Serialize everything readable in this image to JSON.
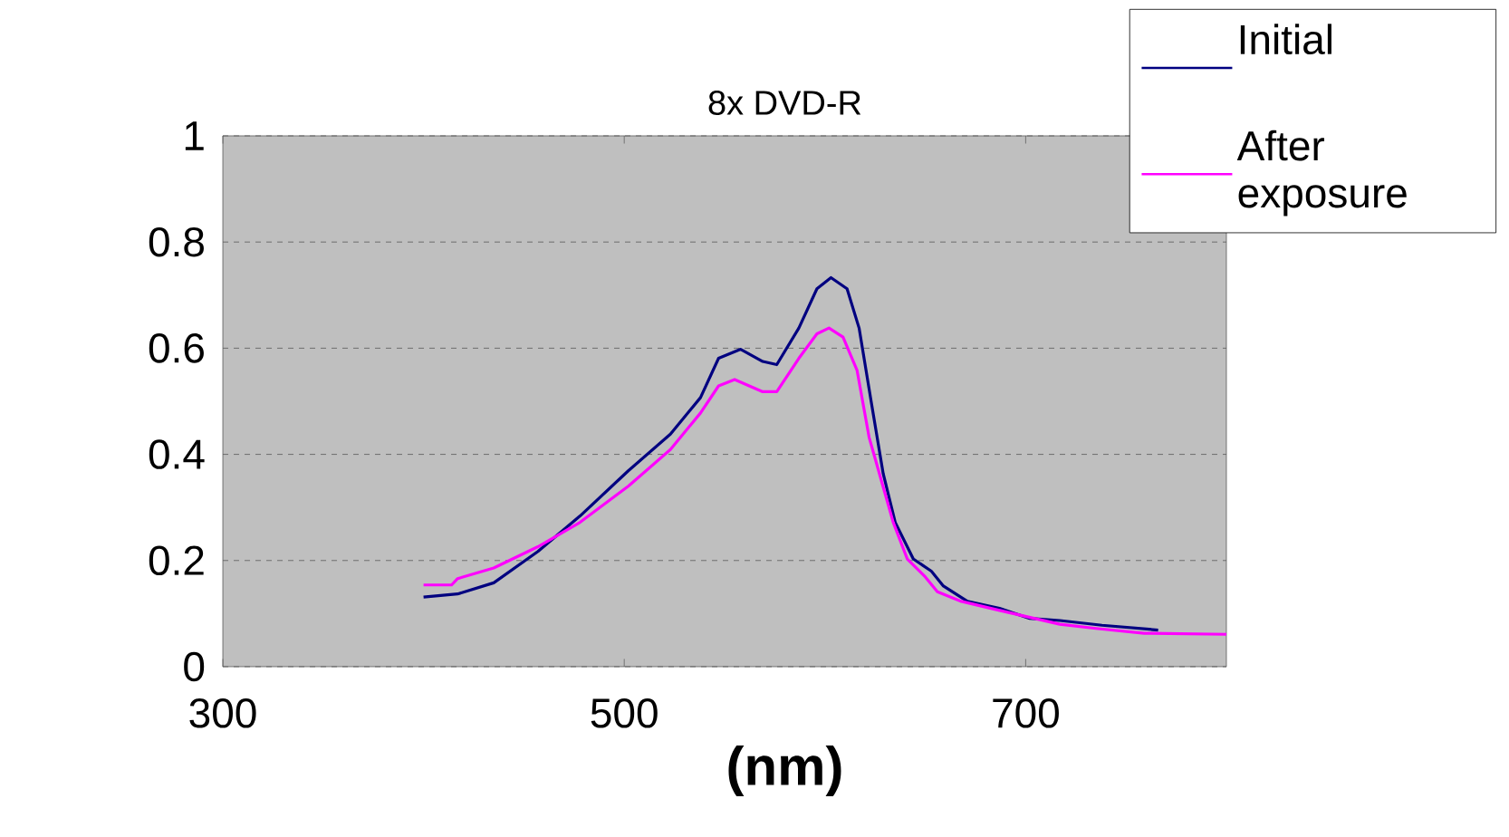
{
  "chart_data": {
    "type": "line",
    "title": "8x DVD-R",
    "xlabel": "(nm)",
    "xlim": [
      300,
      800
    ],
    "xticks": [
      300,
      500,
      700
    ],
    "ylim": [
      0,
      1
    ],
    "yticks": [
      0,
      0.2,
      0.4,
      0.6,
      0.8,
      1
    ],
    "grid": "y",
    "legend": "top right",
    "marker": "none",
    "line_style": "solid",
    "series": [
      {
        "name": "Initial",
        "color": "#000080",
        "x": [
          400,
          417,
          435,
          457,
          478,
          502,
          523,
          538,
          547,
          558,
          569,
          576,
          587,
          596,
          603,
          611,
          617,
          623,
          629,
          635,
          644,
          653,
          659,
          671,
          687,
          702,
          717,
          738,
          766
        ],
        "values": [
          0.131,
          0.137,
          0.158,
          0.217,
          0.284,
          0.369,
          0.438,
          0.507,
          0.581,
          0.598,
          0.575,
          0.569,
          0.638,
          0.712,
          0.733,
          0.712,
          0.638,
          0.5,
          0.364,
          0.272,
          0.203,
          0.18,
          0.152,
          0.123,
          0.11,
          0.091,
          0.087,
          0.078,
          0.069
        ]
      },
      {
        "name": "After exposure",
        "color": "#ff00ff",
        "x": [
          400,
          414,
          417,
          435,
          457,
          478,
          502,
          523,
          538,
          547,
          555,
          569,
          576,
          587,
          596,
          602,
          609,
          616,
          622,
          628,
          634,
          641,
          650,
          656,
          668,
          687,
          717,
          735,
          759,
          800
        ],
        "values": [
          0.154,
          0.154,
          0.166,
          0.186,
          0.226,
          0.272,
          0.34,
          0.409,
          0.478,
          0.529,
          0.541,
          0.518,
          0.518,
          0.581,
          0.627,
          0.638,
          0.621,
          0.558,
          0.432,
          0.352,
          0.272,
          0.203,
          0.169,
          0.141,
          0.123,
          0.106,
          0.08,
          0.072,
          0.063,
          0.061
        ]
      }
    ]
  }
}
